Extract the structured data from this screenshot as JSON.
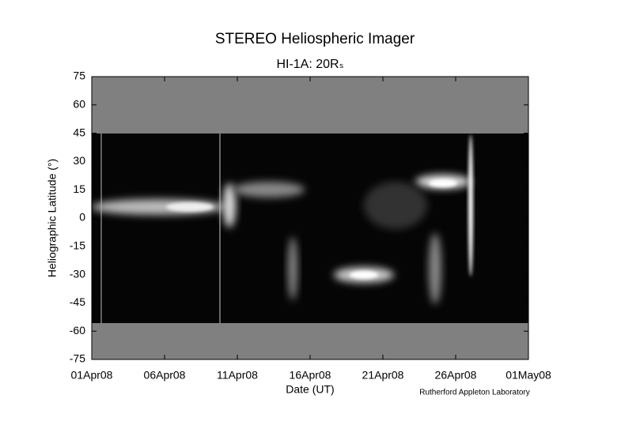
{
  "chart_data": {
    "type": "image",
    "title": "STEREO Heliospheric Imager",
    "subtitle": "HI-1A: 20Rₛ",
    "x_label": "Date (UT)",
    "y_label": "Heliographic Latitude (°)",
    "credit": "Rutherford Appleton Laboratory",
    "xticks": [
      "01Apr08",
      "06Apr08",
      "11Apr08",
      "16Apr08",
      "21Apr08",
      "26Apr08",
      "01May08"
    ],
    "ylim": [
      -75,
      75
    ],
    "yticks": [
      -75,
      -60,
      -45,
      -30,
      -15,
      0,
      15,
      30,
      45,
      60,
      75
    ]
  }
}
